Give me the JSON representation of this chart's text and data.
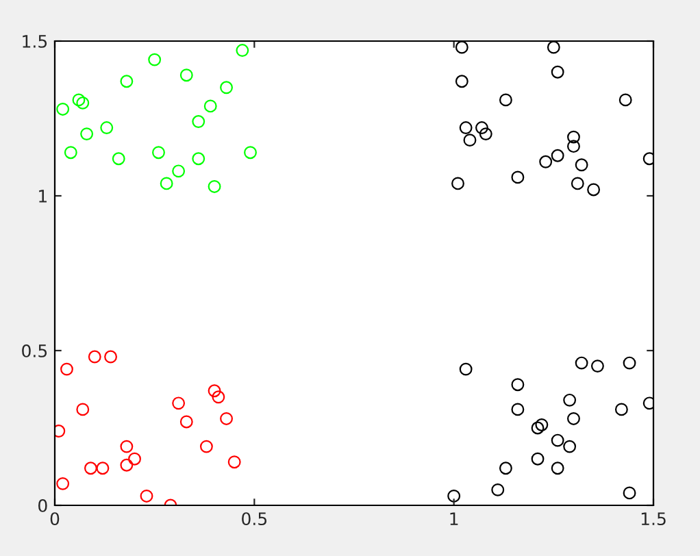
{
  "chart_data": {
    "type": "scatter",
    "marker": "circle",
    "grid": false,
    "legend": false,
    "xlim": [
      0,
      1.5
    ],
    "ylim": [
      0,
      1.5
    ],
    "xticks": [
      0,
      0.5,
      1,
      1.5
    ],
    "yticks": [
      0,
      0.5,
      1,
      1.5
    ],
    "series": [
      {
        "color": "#00ff00",
        "x": [
          0.02,
          0.04,
          0.06,
          0.07,
          0.08,
          0.13,
          0.16,
          0.18,
          0.25,
          0.26,
          0.28,
          0.31,
          0.33,
          0.36,
          0.36,
          0.39,
          0.4,
          0.43,
          0.47,
          0.49
        ],
        "values": [
          1.28,
          1.14,
          1.31,
          1.3,
          1.2,
          1.22,
          1.12,
          1.37,
          1.44,
          1.14,
          1.04,
          1.08,
          1.39,
          1.12,
          1.24,
          1.29,
          1.03,
          1.35,
          1.47,
          1.14
        ]
      },
      {
        "color": "#ff0000",
        "x": [
          0.01,
          0.02,
          0.03,
          0.07,
          0.09,
          0.1,
          0.12,
          0.14,
          0.18,
          0.18,
          0.2,
          0.23,
          0.29,
          0.31,
          0.33,
          0.38,
          0.4,
          0.41,
          0.43,
          0.45
        ],
        "values": [
          0.24,
          0.07,
          0.44,
          0.31,
          0.12,
          0.48,
          0.12,
          0.48,
          0.13,
          0.19,
          0.15,
          0.03,
          0.0,
          0.33,
          0.27,
          0.19,
          0.37,
          0.35,
          0.28,
          0.14
        ]
      },
      {
        "color": "#000000",
        "x": [
          1.02,
          1.02,
          1.03,
          1.04,
          1.01,
          1.07,
          1.08,
          1.13,
          1.16,
          1.23,
          1.25,
          1.26,
          1.26,
          1.3,
          1.3,
          1.32,
          1.31,
          1.35,
          1.43,
          1.49,
          1.0,
          1.03,
          1.11,
          1.13,
          1.16,
          1.16,
          1.21,
          1.22,
          1.21,
          1.26,
          1.26,
          1.29,
          1.29,
          1.3,
          1.32,
          1.36,
          1.42,
          1.44,
          1.44,
          1.49
        ],
        "values": [
          1.48,
          1.37,
          1.22,
          1.18,
          1.04,
          1.22,
          1.2,
          1.31,
          1.06,
          1.11,
          1.48,
          1.4,
          1.13,
          1.19,
          1.16,
          1.1,
          1.04,
          1.02,
          1.31,
          1.12,
          0.03,
          0.44,
          0.05,
          0.12,
          0.39,
          0.31,
          0.25,
          0.26,
          0.15,
          0.12,
          0.21,
          0.34,
          0.19,
          0.28,
          0.46,
          0.45,
          0.31,
          0.04,
          0.46,
          0.33
        ]
      }
    ]
  }
}
